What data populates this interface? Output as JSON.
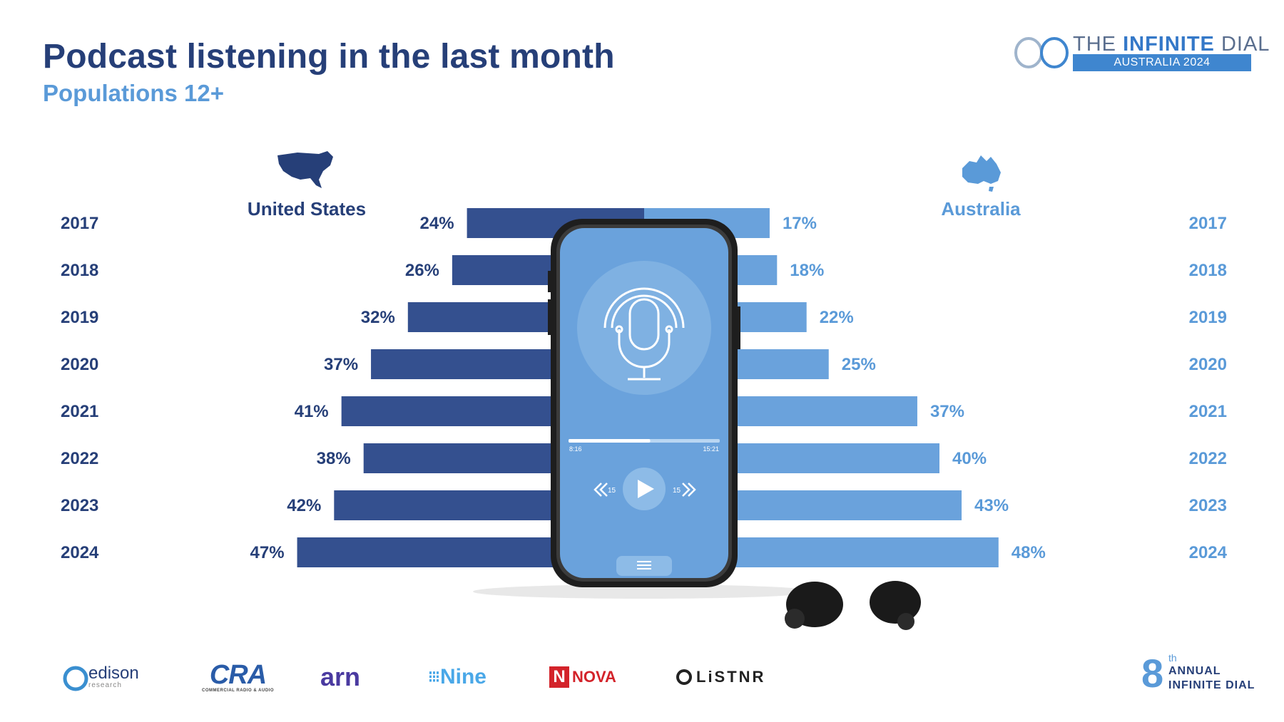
{
  "header": {
    "title": "Podcast listening in the last month",
    "subtitle": "Populations 12+"
  },
  "brand": {
    "line1_prefix": "THE ",
    "line1_strong": "INFINITE",
    "line1_suffix": " DIAL",
    "line2": "AUSTRALIA 2024"
  },
  "countries": {
    "left": "United States",
    "right": "Australia"
  },
  "colors": {
    "us": "#34508f",
    "au": "#6aa2dc",
    "dark_text": "#263f78",
    "light_text": "#5a9ad8"
  },
  "phone": {
    "elapsed": "8:16",
    "total": "15:21",
    "progress": 0.54,
    "skip_back": "15",
    "skip_fwd": "15",
    "icons": [
      "microphone-icon",
      "play-icon",
      "rewind-icon",
      "forward-icon",
      "menu-icon"
    ]
  },
  "chart_data": {
    "type": "bar",
    "orientation": "horizontal-butterfly",
    "title": "Podcast listening in the last month",
    "subtitle": "Populations 12+",
    "categories": [
      "2017",
      "2018",
      "2019",
      "2020",
      "2021",
      "2022",
      "2023",
      "2024"
    ],
    "series": [
      {
        "name": "United States",
        "values": [
          24,
          26,
          32,
          37,
          41,
          38,
          42,
          47
        ],
        "unit": "%"
      },
      {
        "name": "Australia",
        "values": [
          17,
          18,
          22,
          25,
          37,
          40,
          43,
          48
        ],
        "unit": "%"
      }
    ],
    "grid": false
  },
  "footer": {
    "logos": [
      "edison",
      "research",
      "CRA",
      "COMMERCIAL RADIO & AUDIO",
      "arn",
      "Nine",
      "NOVA",
      "LiSTNR"
    ],
    "annual": {
      "number": "8",
      "suffix": "th",
      "line1": "ANNUAL",
      "line2": "INFINITE DIAL"
    }
  }
}
